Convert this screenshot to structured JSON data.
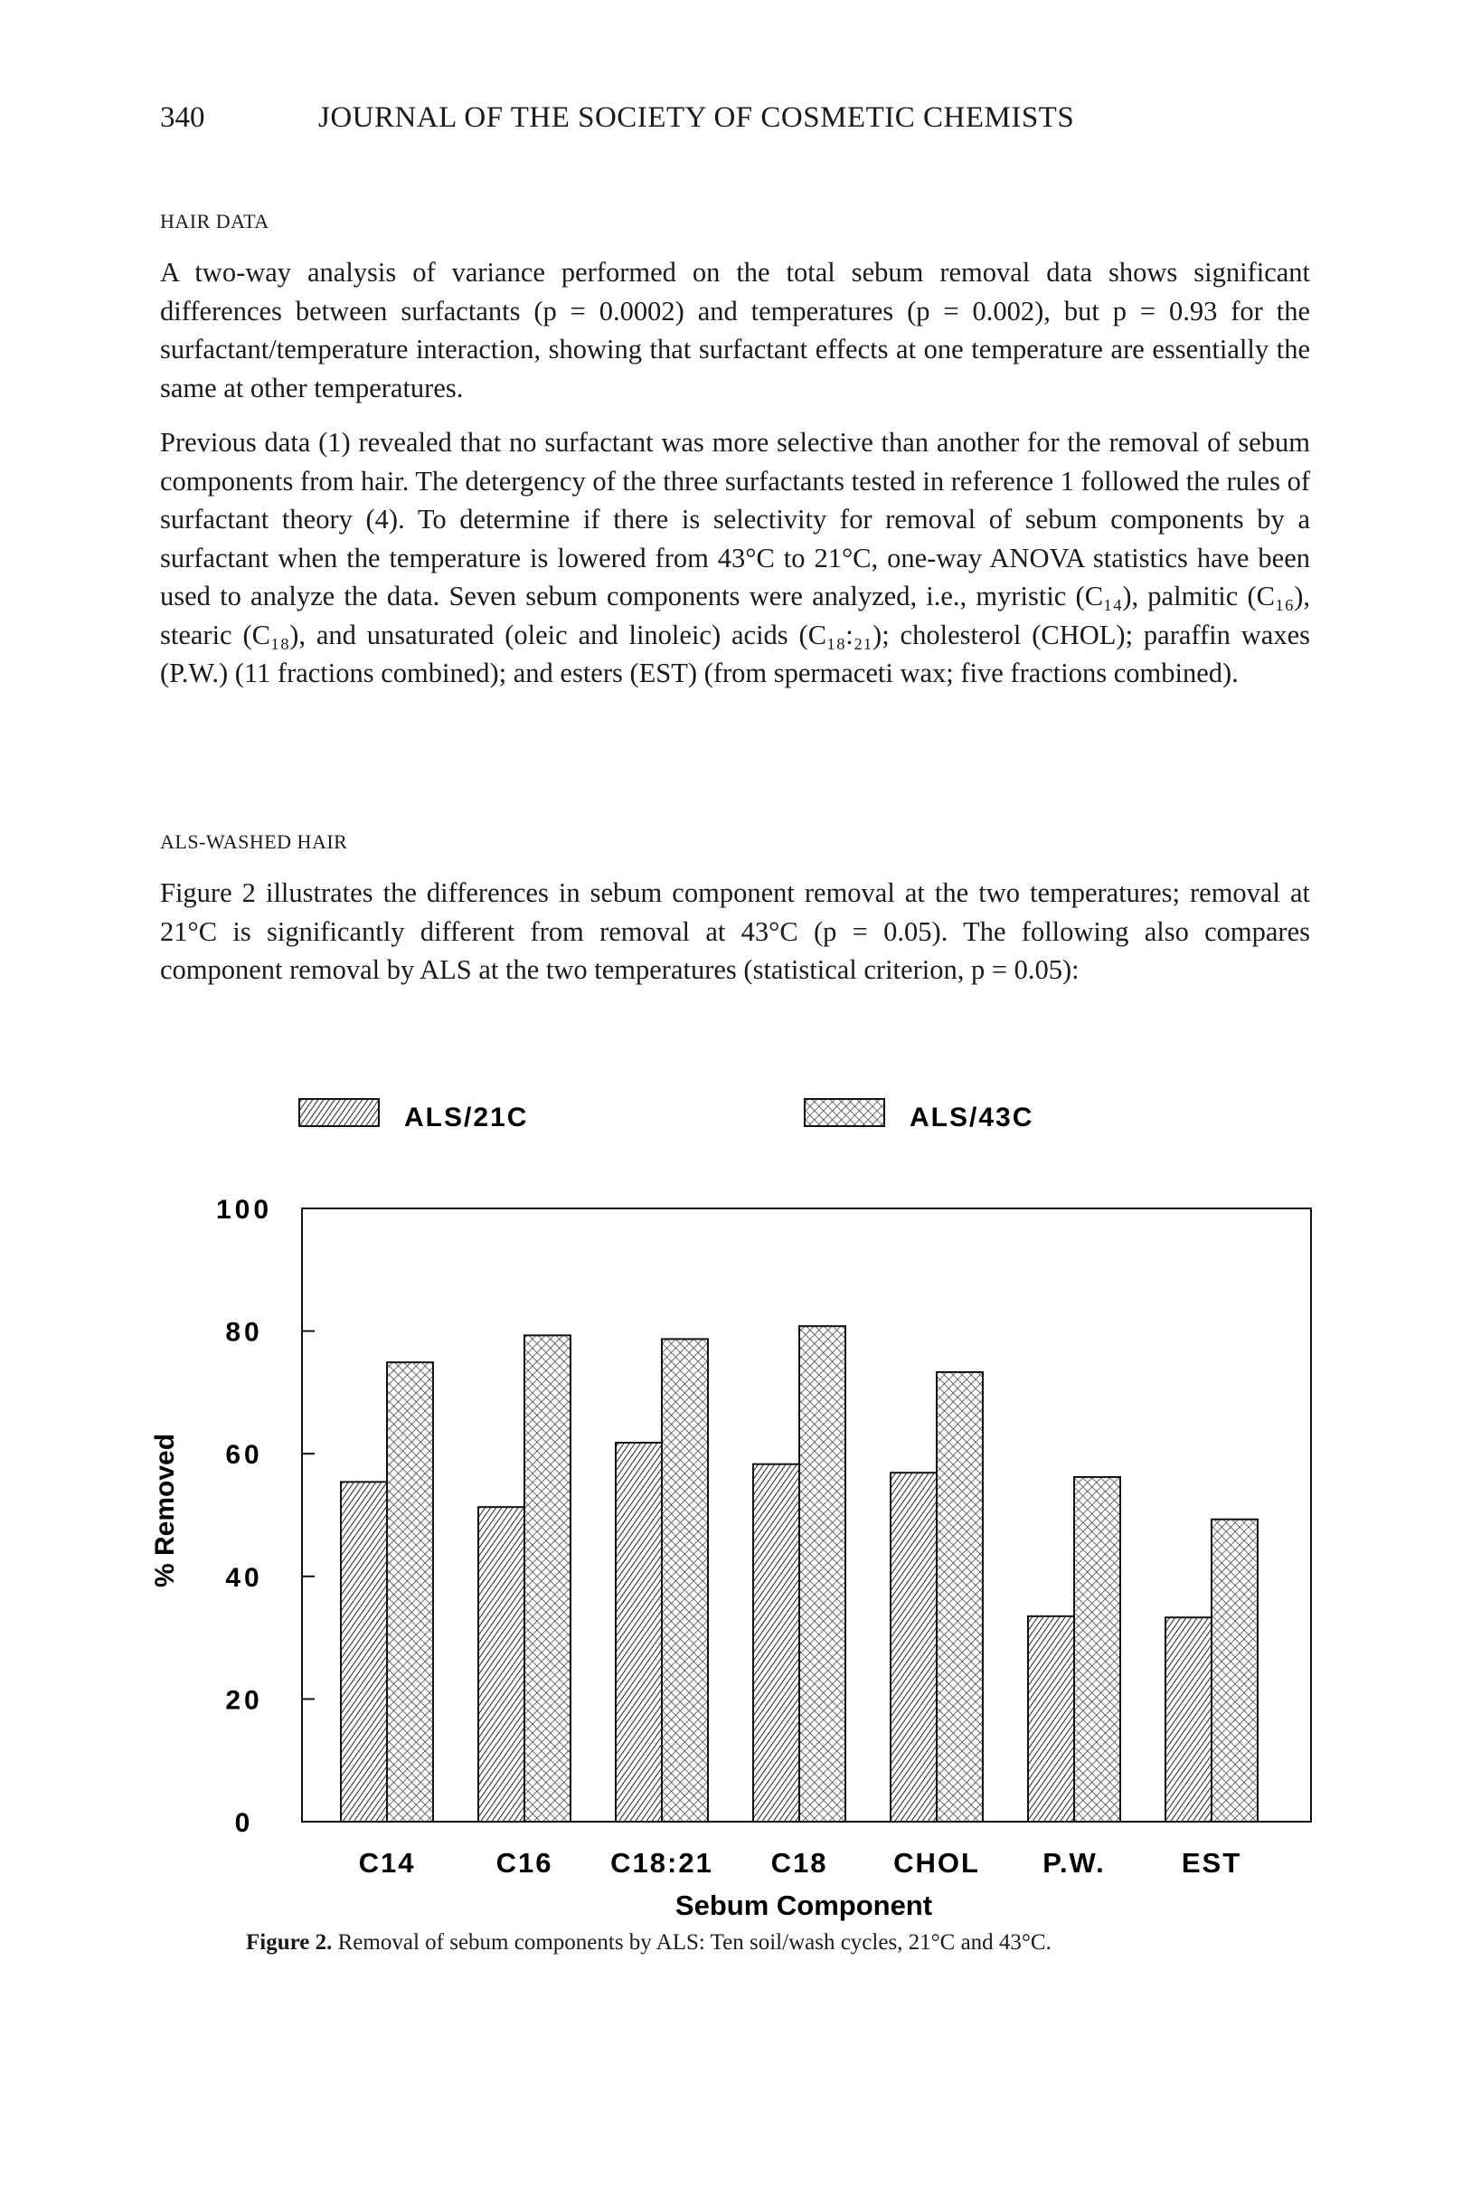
{
  "header": {
    "page_number": "340",
    "journal": "JOURNAL OF THE SOCIETY OF COSMETIC CHEMISTS"
  },
  "sections": {
    "hair_data": {
      "heading": "HAIR DATA",
      "paragraphs": [
        "A two-way analysis of variance performed on the total sebum removal data shows significant differences between surfactants (p = 0.0002) and temperatures (p = 0.002), but p = 0.93 for the surfactant/temperature interaction, showing that surfactant effects at one temperature are essentially the same at other temperatures.",
        "Previous data (1) revealed that no surfactant was more selective than another for the removal of sebum components from hair. The detergency of the three surfactants tested in reference 1 followed the rules of surfactant theory (4). To determine if there is selectivity for removal of sebum components by a surfactant when the temperature is lowered from 43°C to 21°C, one-way ANOVA statistics have been used to analyze the data. Seven sebum components were analyzed, i.e., myristic (C₁₄), palmitic (C₁₆), stearic (C₁₈), and unsaturated (oleic and linoleic) acids (C₁₈:₂₁); cholesterol (CHOL); paraffin waxes (P.W.) (11 fractions combined); and esters (EST) (from spermaceti wax; five fractions combined)."
      ]
    },
    "als_washed": {
      "heading": "ALS-WASHED HAIR",
      "paragraphs": [
        "Figure 2 illustrates the differences in sebum component removal at the two temperatures; removal at 21°C is significantly different from removal at 43°C (p = 0.05). The following also compares component removal by ALS at the two temperatures (statistical criterion, p = 0.05):"
      ]
    }
  },
  "chart_data": {
    "type": "bar",
    "categories": [
      "C14",
      "C16",
      "C18:21",
      "C18",
      "CHOL",
      "P.W.",
      "EST"
    ],
    "series": [
      {
        "name": "ALS/21C",
        "values": [
          55.4,
          51.3,
          61.8,
          58.3,
          56.9,
          33.5,
          33.3
        ],
        "pattern": "diagonal-hatch"
      },
      {
        "name": "ALS/43C",
        "values": [
          74.9,
          79.3,
          78.7,
          80.8,
          73.3,
          56.2,
          49.3
        ],
        "pattern": "cross-hatch"
      }
    ],
    "xlabel": "Sebum Component",
    "ylabel": "% Removed",
    "ylim": [
      0,
      100
    ],
    "yticks": [
      "0",
      "20",
      "40",
      "60",
      "80",
      "100"
    ],
    "grid": false,
    "legend_position": "top"
  },
  "caption": {
    "label": "Figure 2.",
    "text": "Removal of sebum components by ALS: Ten soil/wash cycles, 21°C and 43°C."
  }
}
